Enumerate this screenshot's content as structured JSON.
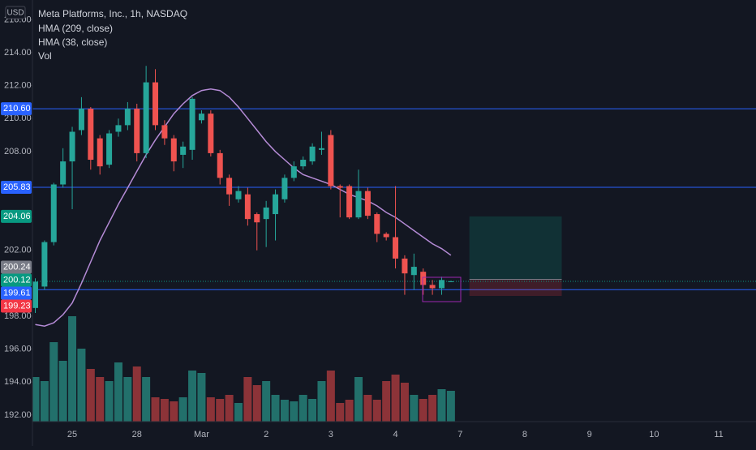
{
  "chart_data": {
    "type": "candlestick",
    "currency": "USD",
    "title": "Meta Platforms, Inc., 1h, NASDAQ",
    "categories": [
      null,
      null,
      null,
      null,
      "25",
      null,
      null,
      null,
      null,
      null,
      null,
      "28",
      null,
      null,
      null,
      null,
      null,
      null,
      "Mar",
      null,
      null,
      null,
      null,
      null,
      null,
      "2",
      null,
      null,
      null,
      null,
      null,
      null,
      "3",
      null,
      null,
      null,
      null,
      null,
      null,
      "4",
      null,
      null,
      null,
      null,
      null,
      null,
      "7",
      null,
      null,
      null,
      null,
      null,
      null,
      "8",
      null,
      null,
      null,
      null,
      null,
      null,
      "9",
      null,
      null,
      null,
      null,
      null,
      null,
      "10",
      null,
      null,
      null,
      null,
      null,
      null,
      "11",
      null,
      null,
      null
    ],
    "open": [
      198.5,
      199.8,
      202.5,
      206.0,
      207.4,
      209.3,
      210.6,
      208.8,
      207.2,
      209.2,
      209.6,
      210.6,
      207.9,
      212.2,
      209.6,
      208.8,
      207.8,
      208.1,
      209.9,
      210.3,
      207.9,
      206.4,
      205.1,
      205.4,
      204.2,
      203.9,
      204.2,
      205.1,
      206.4,
      207.1,
      207.4,
      208.1,
      209.0,
      205.9,
      205.9,
      204.0,
      205.6,
      204.2,
      203.0,
      202.8,
      201.5,
      200.5,
      200.7,
      199.9,
      199.7,
      200.12,
      null,
      null,
      null,
      null,
      null,
      null,
      null,
      null,
      null,
      null,
      null,
      null,
      null,
      null,
      null,
      null,
      null,
      null,
      null,
      null,
      null,
      null,
      null,
      null,
      null,
      null,
      null,
      null,
      null,
      null,
      null,
      null
    ],
    "high": [
      200.3,
      202.6,
      206.1,
      208.2,
      209.5,
      211.3,
      210.7,
      209.0,
      209.3,
      210.0,
      211.0,
      210.9,
      213.2,
      213.0,
      209.9,
      209.0,
      208.6,
      211.3,
      210.5,
      210.5,
      208.1,
      206.6,
      205.9,
      205.8,
      204.3,
      205.0,
      205.7,
      206.6,
      207.4,
      207.7,
      208.5,
      209.2,
      209.3,
      206.0,
      206.0,
      206.9,
      205.8,
      204.3,
      203.1,
      205.9,
      201.7,
      201.8,
      200.9,
      200.2,
      200.4,
      200.15,
      null,
      null,
      null,
      null,
      null,
      null,
      null,
      null,
      null,
      null,
      null,
      null,
      null,
      null,
      null,
      null,
      null,
      null,
      null,
      null,
      null,
      null,
      null,
      null,
      null,
      null,
      null,
      null,
      null,
      null,
      null,
      null
    ],
    "low": [
      198.2,
      199.6,
      202.3,
      205.8,
      204.5,
      209.0,
      206.9,
      206.6,
      207.0,
      208.9,
      209.3,
      207.4,
      207.6,
      209.3,
      208.4,
      206.8,
      207.0,
      207.5,
      209.7,
      207.7,
      206.0,
      204.7,
      204.9,
      203.5,
      202.0,
      202.2,
      202.6,
      204.9,
      206.2,
      206.9,
      207.2,
      207.8,
      205.7,
      204.0,
      203.9,
      203.9,
      203.9,
      202.5,
      202.6,
      200.9,
      199.3,
      199.6,
      199.3,
      199.3,
      199.3,
      200.1,
      null,
      null,
      null,
      null,
      null,
      null,
      null,
      null,
      null,
      null,
      null,
      null,
      null,
      null,
      null,
      null,
      null,
      null,
      null,
      null,
      null,
      null,
      null,
      null,
      null,
      null,
      null,
      null,
      null,
      null,
      null,
      null
    ],
    "close": [
      200.1,
      202.5,
      206.0,
      207.4,
      209.2,
      210.6,
      207.5,
      207.1,
      209.1,
      209.6,
      210.6,
      207.9,
      212.2,
      209.6,
      208.8,
      207.4,
      208.3,
      211.2,
      210.3,
      207.9,
      206.4,
      205.4,
      205.6,
      203.9,
      203.7,
      204.6,
      205.4,
      206.4,
      207.1,
      207.5,
      208.3,
      208.2,
      205.9,
      205.8,
      204.0,
      205.6,
      204.1,
      203.0,
      202.8,
      201.5,
      200.6,
      201.0,
      199.9,
      199.7,
      200.2,
      200.12,
      null,
      null,
      null,
      null,
      null,
      null,
      null,
      null,
      null,
      null,
      null,
      null,
      null,
      null,
      null,
      null,
      null,
      null,
      null,
      null,
      null,
      null,
      null,
      null,
      null,
      null,
      null,
      null,
      null,
      null,
      null,
      null
    ],
    "up_color": "#26a69a",
    "down_color": "#ef5350",
    "hma_long": {
      "name": "HMA (209, close)"
    },
    "hma": {
      "name": "HMA (38, close)",
      "color": "#b58bd6",
      "values": [
        197.5,
        197.4,
        197.6,
        198.1,
        198.8,
        200.0,
        201.3,
        202.6,
        203.7,
        204.8,
        205.8,
        206.8,
        207.8,
        208.7,
        209.5,
        210.3,
        210.9,
        211.4,
        211.7,
        211.8,
        211.7,
        211.3,
        210.7,
        210.0,
        209.3,
        208.6,
        208.0,
        207.5,
        207.0,
        206.6,
        206.4,
        206.2,
        206.0,
        205.7,
        205.4,
        205.2,
        205.0,
        204.7,
        204.3,
        204.0,
        203.6,
        203.2,
        202.8,
        202.4,
        202.1,
        201.7,
        null,
        null,
        null,
        null,
        null,
        null,
        null,
        null,
        null,
        null,
        null,
        null,
        null,
        null,
        null,
        null,
        null,
        null,
        null,
        null,
        null,
        null,
        null,
        null,
        null,
        null,
        null,
        null,
        null,
        null,
        null,
        null
      ]
    },
    "volume": {
      "name": "Vol",
      "up_color": "#22706b",
      "down_color": "#8c3338",
      "values": [
        55,
        50,
        98,
        75,
        130,
        90,
        65,
        55,
        50,
        73,
        55,
        68,
        55,
        30,
        28,
        25,
        30,
        63,
        60,
        30,
        28,
        33,
        23,
        55,
        45,
        50,
        33,
        27,
        25,
        33,
        28,
        50,
        63,
        23,
        27,
        55,
        33,
        27,
        50,
        58,
        48,
        33,
        28,
        33,
        40,
        38,
        null,
        null,
        null,
        null,
        null,
        null,
        null,
        null,
        null,
        null,
        null,
        null,
        null,
        null,
        null,
        null,
        null,
        null,
        null,
        null,
        null,
        null,
        null,
        null,
        null,
        null,
        null,
        null,
        null,
        null,
        null,
        null
      ]
    },
    "ylim": [
      191.6,
      217.2
    ],
    "yticks": [
      {
        "value": 192,
        "label": "192.00"
      },
      {
        "value": 194,
        "label": "194.00"
      },
      {
        "value": 196,
        "label": "196.00"
      },
      {
        "value": 198,
        "label": "198.00"
      },
      {
        "value": 200,
        "label": "200.00"
      },
      {
        "value": 202,
        "label": "202.00"
      },
      {
        "value": 204,
        "label": "204.00"
      },
      {
        "value": 206,
        "label": "206.00"
      },
      {
        "value": 208,
        "label": "208.00"
      },
      {
        "value": 210,
        "label": "210.00"
      },
      {
        "value": 212,
        "label": "212.00"
      },
      {
        "value": 214,
        "label": "214.00"
      },
      {
        "value": 216,
        "label": "216.00"
      }
    ],
    "price_lines": [
      {
        "value": 210.6,
        "label": "210.60",
        "color": "#2962ff"
      },
      {
        "value": 205.83,
        "label": "205.83",
        "color": "#2962ff"
      },
      {
        "value": 199.61,
        "label": "199.61",
        "color": "#2962ff"
      }
    ],
    "last_price": {
      "value": 200.12,
      "label": "200.12",
      "color": "#089981"
    },
    "position": {
      "target": {
        "value": 204.06,
        "label": "204.06",
        "color": "#089981"
      },
      "entry": {
        "value": 200.24,
        "label": "200.24",
        "color": "#787b86"
      },
      "stop": {
        "value": 199.23,
        "label": "199.23",
        "color": "#f23645"
      }
    }
  }
}
